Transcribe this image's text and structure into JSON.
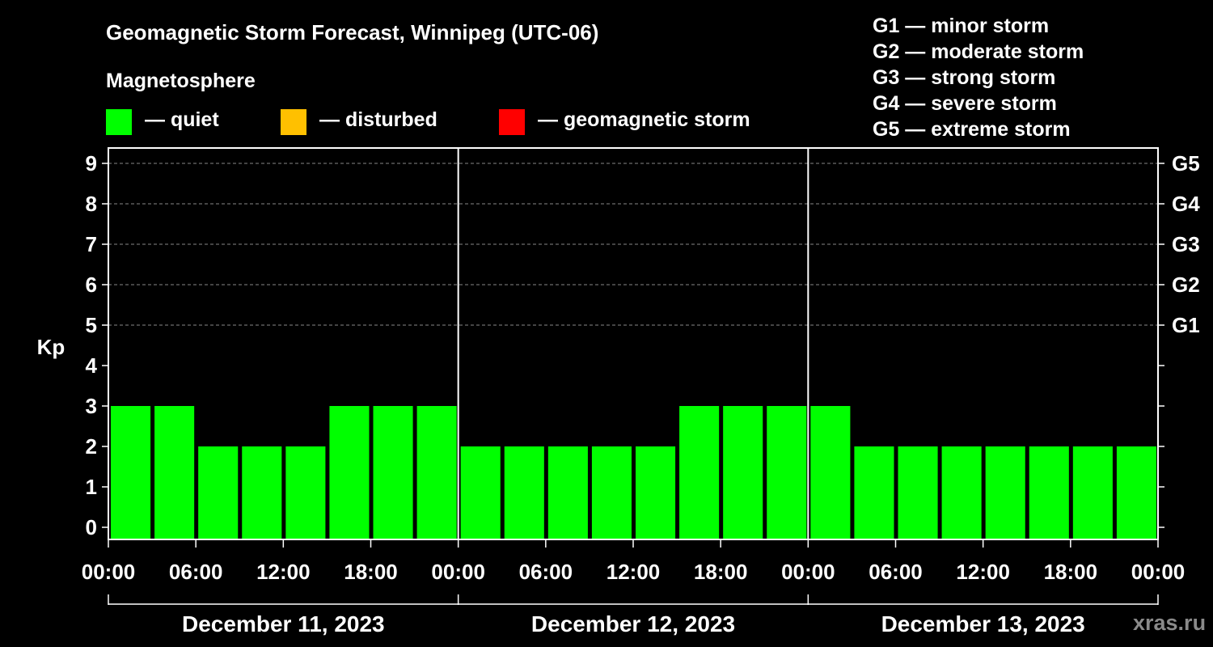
{
  "header": {
    "title": "Geomagnetic Storm Forecast, Winnipeg (UTC-06)",
    "subtitle": "Magnetosphere"
  },
  "legend": [
    {
      "label": "— quiet",
      "color": "#00ff00"
    },
    {
      "label": "— disturbed",
      "color": "#ffc000"
    },
    {
      "label": "— geomagnetic storm",
      "color": "#ff0000"
    }
  ],
  "g_scale": [
    "G1 — minor storm",
    "G2 — moderate storm",
    "G3 — strong storm",
    "G4 — severe storm",
    "G5 — extreme storm"
  ],
  "watermark": "xras.ru",
  "chart_data": {
    "type": "bar",
    "ylabel": "Kp",
    "ylim": [
      0,
      9
    ],
    "y_ticks": [
      0,
      1,
      2,
      3,
      4,
      5,
      6,
      7,
      8,
      9
    ],
    "right_ticks": [
      {
        "label": "G1",
        "kp": 5
      },
      {
        "label": "G2",
        "kp": 6
      },
      {
        "label": "G3",
        "kp": 7
      },
      {
        "label": "G4",
        "kp": 8
      },
      {
        "label": "G5",
        "kp": 9
      }
    ],
    "x_tick_labels": [
      "00:00",
      "06:00",
      "12:00",
      "18:00",
      "00:00",
      "06:00",
      "12:00",
      "18:00",
      "00:00",
      "06:00",
      "12:00",
      "18:00",
      "00:00"
    ],
    "days": [
      "December 11, 2023",
      "December 12, 2023",
      "December 13, 2023"
    ],
    "interval_hours": 3,
    "values": [
      3,
      3,
      2,
      2,
      2,
      3,
      3,
      3,
      2,
      2,
      2,
      2,
      2,
      3,
      3,
      3,
      3,
      2,
      2,
      2,
      2,
      2,
      2,
      2
    ],
    "bar_color": "#00ff00",
    "grid": true
  }
}
